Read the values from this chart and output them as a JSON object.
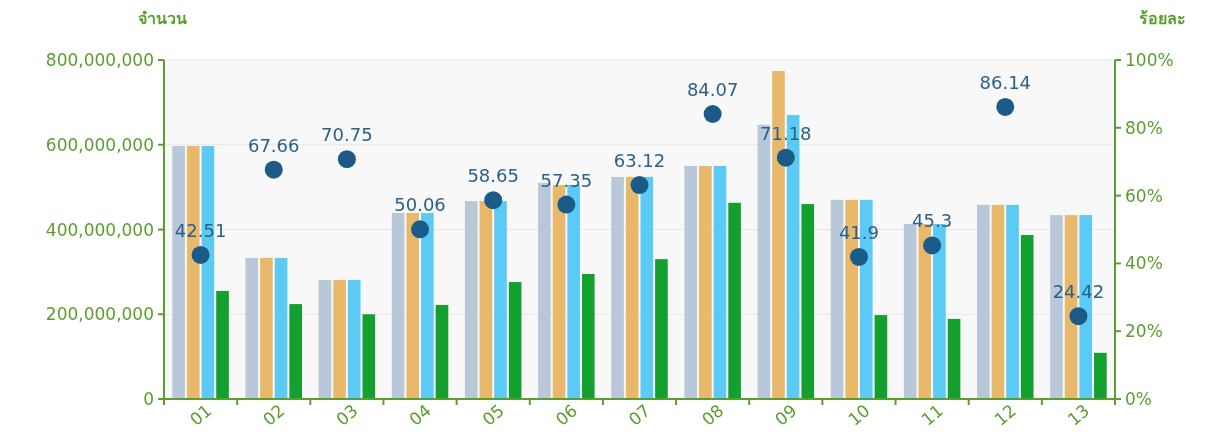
{
  "chart_data": {
    "type": "bar",
    "ylabel": "จำนวน",
    "y2label": "ร้อยละ",
    "categories": [
      "01",
      "02",
      "03",
      "04",
      "05",
      "06",
      "07",
      "08",
      "09",
      "10",
      "11",
      "12",
      "13"
    ],
    "series": [
      {
        "color": "#b9c8d9",
        "values": [
          597000000,
          333000000,
          281000000,
          439000000,
          467000000,
          510000000,
          524000000,
          550000000,
          647000000,
          470000000,
          413000000,
          458000000,
          434000000
        ]
      },
      {
        "color": "#e8b96a",
        "values": [
          597000000,
          333000000,
          281000000,
          439000000,
          467000000,
          505000000,
          524000000,
          550000000,
          774000000,
          470000000,
          413000000,
          458000000,
          434000000
        ]
      },
      {
        "color": "#5bcaf5",
        "values": [
          597000000,
          333000000,
          281000000,
          439000000,
          467000000,
          505000000,
          524000000,
          550000000,
          670000000,
          470000000,
          413000000,
          458000000,
          434000000
        ]
      },
      {
        "color": "#14a02e",
        "values": [
          255000000,
          224000000,
          200000000,
          222000000,
          276000000,
          295000000,
          330000000,
          463000000,
          460000000,
          198000000,
          189000000,
          387000000,
          109000000
        ]
      },
      {
        "type": "scatter",
        "axis": "y2",
        "marker": "circle",
        "color": "#1c5a87",
        "values": [
          42.51,
          67.66,
          70.75,
          50.06,
          58.65,
          57.35,
          63.12,
          84.07,
          71.18,
          41.9,
          45.3,
          86.14,
          24.42
        ],
        "value_labels": [
          "42.51",
          "67.66",
          "70.75",
          "50.06",
          "58.65",
          "57.35",
          "63.12",
          "84.07",
          "71.18",
          "41.9",
          "45.3",
          "86.14",
          "24.42"
        ]
      }
    ],
    "ylim": [
      0,
      800000000
    ],
    "yticks": [
      {
        "value": 0,
        "label": "0"
      },
      {
        "value": 200000000,
        "label": "200,000,000"
      },
      {
        "value": 400000000,
        "label": "400,000,000"
      },
      {
        "value": 600000000,
        "label": "600,000,000"
      },
      {
        "value": 800000000,
        "label": "800,000,000"
      }
    ],
    "y2lim": [
      0,
      100
    ],
    "y2ticks": [
      {
        "value": 0,
        "label": "0%"
      },
      {
        "value": 20,
        "label": "20%"
      },
      {
        "value": 40,
        "label": "40%"
      },
      {
        "value": 60,
        "label": "60%"
      },
      {
        "value": 80,
        "label": "80%"
      },
      {
        "value": 100,
        "label": "100%"
      }
    ],
    "grid": "y"
  }
}
